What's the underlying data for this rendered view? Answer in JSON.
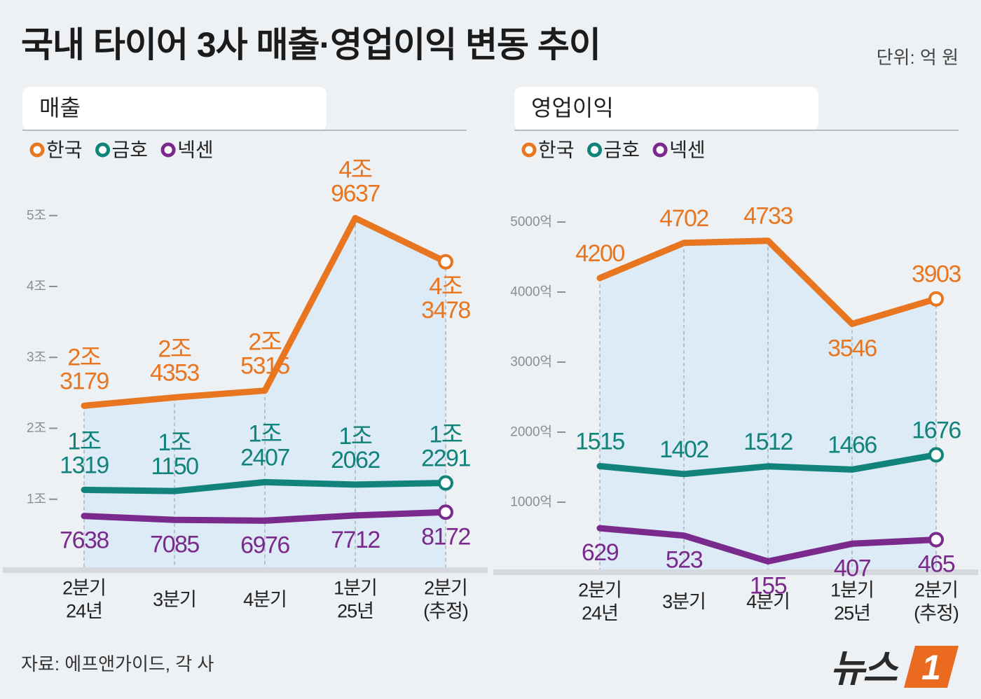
{
  "title": "국내 타이어 3사 매출·영업이익 변동 추이",
  "unit": "단위: 억 원",
  "source": "자료: 에프앤가이드, 각 사",
  "logo": {
    "word": "뉴스",
    "number": "1"
  },
  "chart_data": [
    {
      "type": "line",
      "title": "매출",
      "categories": [
        "2분기\n24년",
        "3분기",
        "4분기",
        "1분기\n25년",
        "2분기\n(추정)"
      ],
      "ylim": [
        0,
        56000
      ],
      "yticks": [
        {
          "value": 10000,
          "label": "1조"
        },
        {
          "value": 20000,
          "label": "2조"
        },
        {
          "value": 30000,
          "label": "3조"
        },
        {
          "value": 40000,
          "label": "4조"
        },
        {
          "value": 50000,
          "label": "5조"
        }
      ],
      "area_color": "#dcebf6",
      "series": [
        {
          "name": "한국",
          "color": "#e8751f",
          "values": [
            23179,
            24353,
            25315,
            49637,
            43478
          ],
          "value_labels": [
            "2조\n3179",
            "2조\n4353",
            "2조\n5315",
            "4조\n9637",
            "4조\n3478"
          ]
        },
        {
          "name": "금호",
          "color": "#12837b",
          "values": [
            11319,
            11150,
            12407,
            12062,
            12291
          ],
          "value_labels": [
            "1조\n1319",
            "1조\n1150",
            "1조\n2407",
            "1조\n2062",
            "1조\n2291"
          ]
        },
        {
          "name": "넥센",
          "color": "#7a2a8c",
          "values": [
            7638,
            7085,
            6976,
            7712,
            8172
          ]
        }
      ]
    },
    {
      "type": "line",
      "title": "영업이익",
      "categories": [
        "2분기\n24년",
        "3분기",
        "4분기",
        "1분기\n25년",
        "2분기\n(추정)"
      ],
      "ylim": [
        0,
        5600
      ],
      "yticks": [
        {
          "value": 1000,
          "label": "1000억"
        },
        {
          "value": 2000,
          "label": "2000억"
        },
        {
          "value": 3000,
          "label": "3000억"
        },
        {
          "value": 4000,
          "label": "4000억"
        },
        {
          "value": 5000,
          "label": "5000억"
        }
      ],
      "area_color": "#dcebf6",
      "series": [
        {
          "name": "한국",
          "color": "#e8751f",
          "values": [
            4200,
            4702,
            4733,
            3546,
            3903
          ]
        },
        {
          "name": "금호",
          "color": "#12837b",
          "values": [
            1515,
            1402,
            1512,
            1466,
            1676
          ]
        },
        {
          "name": "넥센",
          "color": "#7a2a8c",
          "values": [
            629,
            523,
            155,
            407,
            465
          ]
        }
      ]
    }
  ]
}
